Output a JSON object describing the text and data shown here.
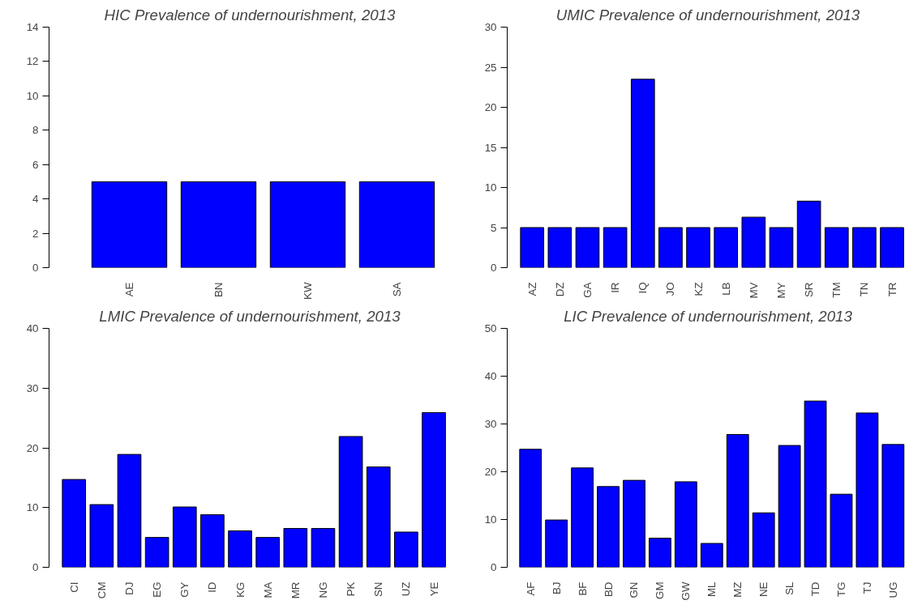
{
  "chart_data": [
    {
      "type": "bar",
      "title": "HIC Prevalence of undernourishment, 2013",
      "categories": [
        "AE",
        "BN",
        "KW",
        "SA"
      ],
      "values": [
        5,
        5,
        5,
        5
      ],
      "color": "#0000ff",
      "ylim": [
        0,
        14
      ],
      "yticks": [
        0,
        2,
        4,
        6,
        8,
        10,
        12,
        14
      ]
    },
    {
      "type": "bar",
      "title": "UMIC Prevalence of undernourishment, 2013",
      "categories": [
        "AZ",
        "DZ",
        "GA",
        "IR",
        "IQ",
        "JO",
        "KZ",
        "LB",
        "MV",
        "MY",
        "SR",
        "TM",
        "TN",
        "TR"
      ],
      "values": [
        5,
        5,
        5,
        5,
        23.5,
        5,
        5,
        5,
        6.3,
        5,
        8.3,
        5,
        5,
        5
      ],
      "color": "#0000ff",
      "ylim": [
        0,
        30
      ],
      "yticks": [
        0,
        5,
        10,
        15,
        20,
        25,
        30
      ]
    },
    {
      "type": "bar",
      "title": "LMIC Prevalence of undernourishment, 2013",
      "categories": [
        "CI",
        "CM",
        "DJ",
        "EG",
        "GY",
        "ID",
        "KG",
        "MA",
        "MR",
        "NG",
        "PK",
        "SN",
        "UZ",
        "YE"
      ],
      "values": [
        14.7,
        10.5,
        18.9,
        5,
        10.1,
        8.8,
        6.1,
        5,
        6.5,
        6.5,
        21.9,
        16.8,
        5.9,
        25.9
      ],
      "color": "#0000ff",
      "ylim": [
        0,
        40
      ],
      "yticks": [
        0,
        10,
        20,
        30,
        40
      ]
    },
    {
      "type": "bar",
      "title": "LIC Prevalence of undernourishment, 2013",
      "categories": [
        "AF",
        "BJ",
        "BF",
        "BD",
        "GN",
        "GM",
        "GW",
        "ML",
        "MZ",
        "NE",
        "SL",
        "TD",
        "TG",
        "TJ",
        "UG"
      ],
      "values": [
        24.7,
        9.9,
        20.8,
        16.9,
        18.2,
        6.1,
        17.9,
        5,
        27.8,
        11.4,
        25.5,
        34.8,
        15.3,
        32.3,
        25.7
      ],
      "color": "#0000ff",
      "ylim": [
        0,
        50
      ],
      "yticks": [
        0,
        10,
        20,
        30,
        40,
        50
      ]
    }
  ]
}
